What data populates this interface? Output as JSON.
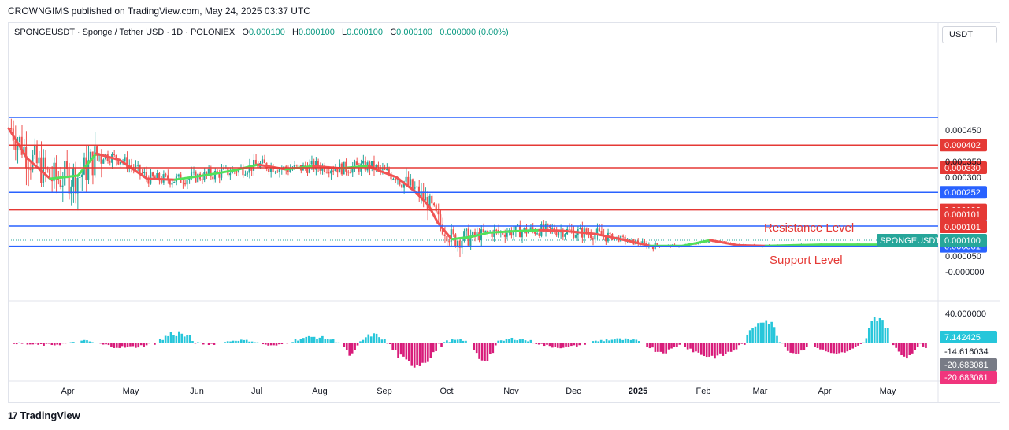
{
  "header": {
    "publisher_line": "CROWNGIMS published on TradingView.com, May 24, 2025 03:37 UTC"
  },
  "legend": {
    "symbol_line": "SPONGEUSDT · Sponge / Tether USD · 1D · POLONIEX",
    "o_label": "O",
    "o_value": "0.000100",
    "h_label": "H",
    "h_value": "0.000100",
    "l_label": "L",
    "l_value": "0.000100",
    "c_label": "C",
    "c_value": "0.000100",
    "change": "0.000000 (0.00%)"
  },
  "price_axis": {
    "unit": "USDT"
  },
  "footer": {
    "brand": "TradingView",
    "logo_glyph": "17"
  },
  "colors": {
    "up": "#26a69a",
    "down": "#ef5350",
    "ma_down": "#f05454",
    "ma_up": "#52e05a",
    "h_line_red": "#e53935",
    "h_line_blue": "#2962ff",
    "hist_pos": "#26c6da",
    "hist_neg": "#d81b7a"
  },
  "chart_data": [
    {
      "type": "candlestick",
      "symbol": "SPONGEUSDT",
      "exchange": "POLONIEX",
      "interval": "1D",
      "ylim": [
        -2e-05,
        0.00051
      ],
      "y_ticks": [
        "0.000450",
        "0.000350",
        "0.000300",
        "0.000050",
        "-0.000000"
      ],
      "y_tick_values": [
        0.00045,
        0.00035,
        0.0003,
        5e-05,
        0.0
      ],
      "x_ticks": [
        "Apr",
        "May",
        "Jun",
        "Jul",
        "Aug",
        "Sep",
        "Oct",
        "Nov",
        "Dec",
        "2025",
        "Feb",
        "Mar",
        "Apr",
        "May"
      ],
      "horizontal_levels": [
        {
          "value": 0.00049,
          "color": "blue",
          "label": ""
        },
        {
          "value": 0.000402,
          "color": "red",
          "label": "0.000402"
        },
        {
          "value": 0.00033,
          "color": "red",
          "label": "0.000330"
        },
        {
          "value": 0.000252,
          "color": "blue",
          "label": "0.000252"
        },
        {
          "value": 0.000196,
          "color": "red",
          "label": "0.000196"
        },
        {
          "value": 0.000145,
          "color": "blue",
          "label": "0.000145"
        },
        {
          "value": 8.1e-05,
          "color": "blue",
          "label": "0.000081"
        }
      ],
      "price_badges": [
        {
          "value": 0.000101,
          "label": "0.000101",
          "color": "red"
        },
        {
          "value": 0.000101,
          "label": "0.000101",
          "color": "red"
        },
        {
          "value": 0.0001,
          "label": "0.000100",
          "color": "teal"
        }
      ],
      "annotations": [
        {
          "text": "Resistance Level",
          "color": "red"
        },
        {
          "text": "Support Level",
          "color": "red"
        }
      ],
      "last_price_tag": "SPONGEUSDT",
      "moving_average": [
        {
          "t": 0.0,
          "v": 0.000455
        },
        {
          "t": 0.02,
          "v": 0.00036
        },
        {
          "t": 0.045,
          "v": 0.000295
        },
        {
          "t": 0.075,
          "v": 0.000305
        },
        {
          "t": 0.095,
          "v": 0.000375
        },
        {
          "t": 0.12,
          "v": 0.000355
        },
        {
          "t": 0.15,
          "v": 0.000295
        },
        {
          "t": 0.18,
          "v": 0.000292
        },
        {
          "t": 0.215,
          "v": 0.000307
        },
        {
          "t": 0.245,
          "v": 0.000322
        },
        {
          "t": 0.27,
          "v": 0.00034
        },
        {
          "t": 0.3,
          "v": 0.000325
        },
        {
          "t": 0.33,
          "v": 0.000335
        },
        {
          "t": 0.36,
          "v": 0.000328
        },
        {
          "t": 0.39,
          "v": 0.000336
        },
        {
          "t": 0.4,
          "v": 0.000322
        },
        {
          "t": 0.42,
          "v": 0.0003
        },
        {
          "t": 0.44,
          "v": 0.000255
        },
        {
          "t": 0.455,
          "v": 0.00021
        },
        {
          "t": 0.465,
          "v": 0.000155
        },
        {
          "t": 0.48,
          "v": 0.000103
        },
        {
          "t": 0.5,
          "v": 0.00011
        },
        {
          "t": 0.52,
          "v": 0.000124
        },
        {
          "t": 0.545,
          "v": 0.000128
        },
        {
          "t": 0.575,
          "v": 0.000132
        },
        {
          "t": 0.6,
          "v": 0.00013
        },
        {
          "t": 0.635,
          "v": 0.00012
        },
        {
          "t": 0.665,
          "v": 0.000102
        },
        {
          "t": 0.695,
          "v": 8.2e-05
        },
        {
          "t": 0.73,
          "v": 8.2e-05
        },
        {
          "t": 0.76,
          "v": 0.0001
        },
        {
          "t": 0.79,
          "v": 8.4e-05
        },
        {
          "t": 0.82,
          "v": 8.2e-05
        },
        {
          "t": 0.85,
          "v": 8.4e-05
        },
        {
          "t": 0.88,
          "v": 8.6e-05
        },
        {
          "t": 0.92,
          "v": 8.6e-05
        },
        {
          "t": 0.96,
          "v": 8.6e-05
        },
        {
          "t": 1.0,
          "v": 8.6e-05
        }
      ],
      "candles_note": "Daily OHLC bars from Mar 2024 to May 2025"
    },
    {
      "type": "histogram",
      "name": "oscillator",
      "y_ticks": [
        "40.000000"
      ],
      "y_tick_values": [
        40
      ],
      "value_badges": [
        {
          "label": "7.142425",
          "color": "teal"
        },
        {
          "label": "-14.616034",
          "color": "none"
        },
        {
          "label": "-20.683081",
          "color": "gray"
        },
        {
          "label": "-20.683081",
          "color": "pink"
        }
      ]
    }
  ]
}
